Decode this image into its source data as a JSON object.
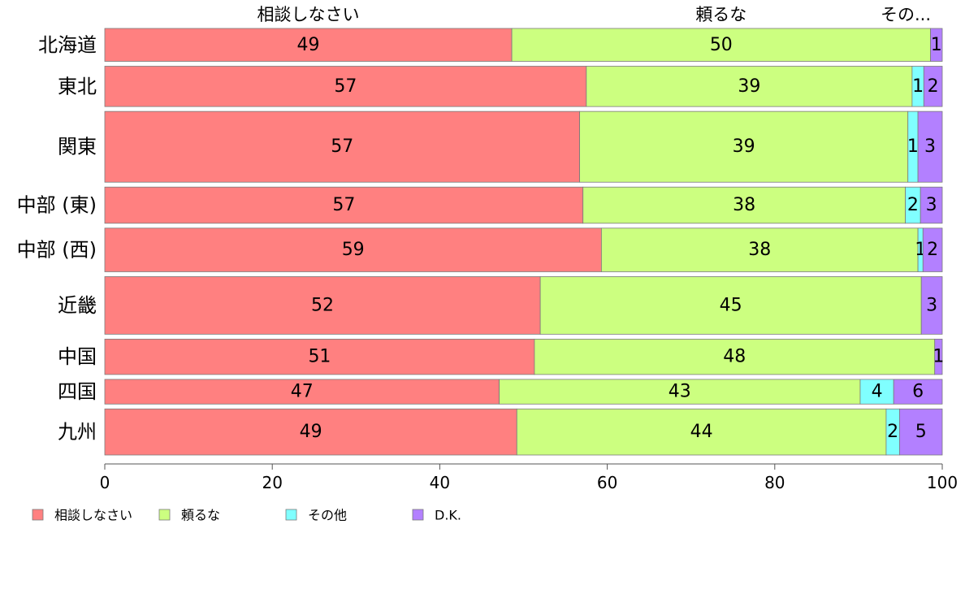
{
  "chart_data": {
    "type": "bar",
    "orientation": "horizontal",
    "stacked": true,
    "categories": [
      "北海道",
      "東北",
      "関東",
      "中部 (東)",
      "中部 (西)",
      "近畿",
      "中国",
      "四国",
      "九州"
    ],
    "series": [
      {
        "name": "相談しなさい",
        "color": "#ff8080",
        "values": [
          48.6,
          57.5,
          56.7,
          57.1,
          59.3,
          52.0,
          51.3,
          47.1,
          49.2
        ]
      },
      {
        "name": "頼るな",
        "color": "#ccff80",
        "values": [
          50.0,
          38.9,
          39.2,
          38.5,
          37.8,
          45.5,
          47.8,
          43.1,
          44.1
        ]
      },
      {
        "name": "その他",
        "color": "#80ffff",
        "values": [
          0.0,
          1.4,
          1.2,
          1.8,
          0.6,
          0.0,
          0.0,
          4.0,
          1.6
        ]
      },
      {
        "name": "D.K.",
        "color": "#b380ff",
        "values": [
          1.4,
          2.2,
          2.9,
          2.6,
          2.3,
          2.5,
          0.9,
          5.8,
          5.1
        ]
      }
    ],
    "data_labels": [
      [
        "49",
        "50",
        "",
        "1"
      ],
      [
        "57",
        "39",
        "1",
        "2"
      ],
      [
        "57",
        "39",
        "1",
        "3"
      ],
      [
        "57",
        "38",
        "2",
        "3"
      ],
      [
        "59",
        "38",
        "1",
        "2"
      ],
      [
        "52",
        "45",
        "",
        "3"
      ],
      [
        "51",
        "48",
        "",
        "1"
      ],
      [
        "47",
        "43",
        "4",
        "6"
      ],
      [
        "49",
        "44",
        "2",
        "5"
      ]
    ],
    "row_weights": [
      0.4,
      0.49,
      0.86,
      0.44,
      0.53,
      0.7,
      0.43,
      0.3,
      0.56
    ],
    "top_labels": [
      "相談しなさい",
      "頼るな",
      "その..."
    ],
    "x_ticks": [
      "0",
      "20",
      "40",
      "60",
      "80",
      "100"
    ],
    "xlim": [
      0,
      100
    ],
    "grid": false,
    "legend_position": "bottom-left",
    "legend": [
      "相談しなさい",
      "頼るな",
      "その他",
      "D.K."
    ]
  }
}
